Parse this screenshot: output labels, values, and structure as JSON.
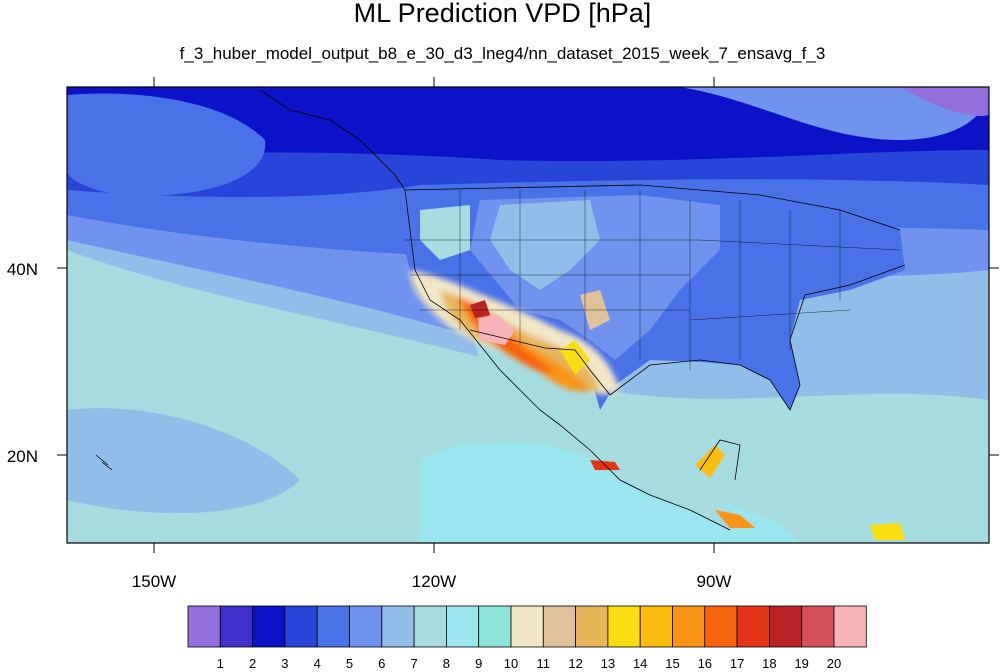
{
  "title": "ML Prediction VPD [hPa]",
  "subtitle": "f_3_huber_model_output_b8_e_30_d3_lneg4/nn_dataset_2015_week_7_ensavg_f_3",
  "axes": {
    "lon_labels": [
      "150W",
      "120W",
      "90W"
    ],
    "lat_labels": [
      "40N",
      "20N"
    ]
  },
  "colorbar": {
    "labels": [
      "1",
      "2",
      "3",
      "4",
      "5",
      "6",
      "7",
      "8",
      "9",
      "10",
      "11",
      "12",
      "13",
      "14",
      "15",
      "16",
      "17",
      "18",
      "19",
      "20"
    ],
    "colors": [
      "#9370db",
      "#3f2fcb",
      "#0b12c8",
      "#2845d9",
      "#4a72e8",
      "#6f93ef",
      "#91bde9",
      "#a6dbe0",
      "#9be6ee",
      "#8ee6db",
      "#f1e6c6",
      "#e0c29a",
      "#e6b55c",
      "#f8dd10",
      "#fcbd10",
      "#f99418",
      "#f7640d",
      "#e53516",
      "#b92227",
      "#d6505a",
      "#f6b3b8"
    ]
  },
  "map": {
    "background_colors": {
      "far_north": "#5a6fe0",
      "north_band": "#0b12c8",
      "mid_band": "#4a72e8",
      "subtropic": "#91bde9",
      "tropic": "#a6dbe0"
    }
  }
}
